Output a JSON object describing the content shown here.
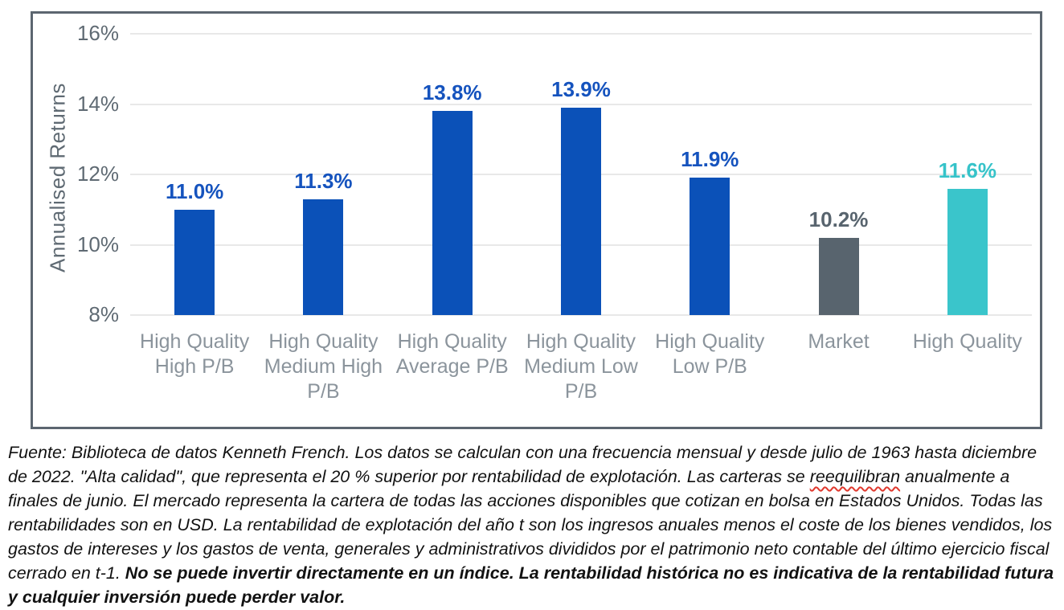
{
  "chart_data": {
    "type": "bar",
    "categories": [
      "High Quality High P/B",
      "High Quality Medium High P/B",
      "High Quality Average P/B",
      "High Quality Medium Low P/B",
      "High Quality Low P/B",
      "Market",
      "High Quality"
    ],
    "category_lines": [
      [
        "High Quality",
        "High P/B"
      ],
      [
        "High Quality",
        "Medium High",
        "P/B"
      ],
      [
        "High Quality",
        "Average P/B"
      ],
      [
        "High Quality",
        "Medium Low",
        "P/B"
      ],
      [
        "High Quality",
        "Low P/B"
      ],
      [
        "Market"
      ],
      [
        "High Quality"
      ]
    ],
    "values": [
      11.0,
      11.3,
      13.8,
      13.9,
      11.9,
      10.2,
      11.6
    ],
    "labels": [
      "11.0%",
      "11.3%",
      "13.8%",
      "13.9%",
      "11.9%",
      "10.2%",
      "11.6%"
    ],
    "bar_colors": [
      "#0b51b8",
      "#0b51b8",
      "#0b51b8",
      "#0b51b8",
      "#0b51b8",
      "#58646e",
      "#3ac5cb"
    ],
    "label_colors": [
      "#1553be",
      "#1553be",
      "#1553be",
      "#1553be",
      "#1553be",
      "#58646e",
      "#36c3c9"
    ],
    "title": "",
    "xlabel": "",
    "ylabel": "Annualised Returns",
    "ylim": [
      8,
      16
    ],
    "yticks": [
      16,
      14,
      12,
      10,
      8
    ],
    "ytick_labels": [
      "16%",
      "14%",
      "12%",
      "10%",
      "8%"
    ],
    "grid": true,
    "legend": "none"
  },
  "colors": {
    "frame_border": "#5c6670",
    "gridline": "#e8e8e8",
    "axis_text": "#5f6a73",
    "category_text": "#8b949c",
    "misspell_underline": "#e0382d",
    "background": "#ffffff"
  },
  "footnote": {
    "segments": [
      {
        "style": "italic",
        "text": "Fuente: Biblioteca de datos Kenneth French. Los datos se calculan con una frecuencia mensual y desde julio de 1963 hasta diciembre de 2022. \"Alta calidad\", que representa el 20 % superior por rentabilidad de explotación. Las carteras se "
      },
      {
        "style": "italic-misspelled",
        "text": "reequilibran"
      },
      {
        "style": "italic",
        "text": " anualmente a finales de junio. El mercado representa la cartera de todas las acciones disponibles que cotizan en bolsa en Estados Unidos. Todas las rentabilidades son en USD. La rentabilidad de explotación del año t son los ingresos anuales menos el coste de los bienes vendidos, los gastos de intereses y los gastos de venta, generales y administrativos divididos por el patrimonio neto contable del último ejercicio fiscal cerrado en t-1. "
      },
      {
        "style": "bold-italic",
        "text": "No se puede invertir directamente en un índice. La rentabilidad histórica no es indicativa de la rentabilidad futura y cualquier inversión puede perder valor."
      }
    ]
  }
}
